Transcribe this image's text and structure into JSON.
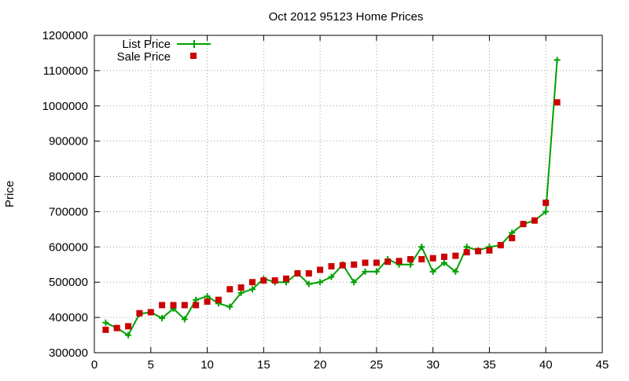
{
  "chart_data": {
    "type": "line",
    "title": "Oct 2012 95123 Home Prices",
    "xlabel": "",
    "ylabel": "Price",
    "xlim": [
      0,
      45
    ],
    "ylim": [
      300000,
      1200000
    ],
    "xticks": [
      0,
      5,
      10,
      15,
      20,
      25,
      30,
      35,
      40,
      45
    ],
    "yticks": [
      300000,
      400000,
      500000,
      600000,
      700000,
      800000,
      900000,
      1000000,
      1100000,
      1200000
    ],
    "grid": true,
    "legend_position": "top-left",
    "series": [
      {
        "name": "List Price",
        "style": "line-plus",
        "color": "#00a000",
        "x": [
          1,
          2,
          3,
          4,
          5,
          6,
          7,
          8,
          9,
          10,
          11,
          12,
          13,
          14,
          15,
          16,
          17,
          18,
          19,
          20,
          21,
          22,
          23,
          24,
          25,
          26,
          27,
          28,
          29,
          30,
          31,
          32,
          33,
          34,
          35,
          36,
          37,
          38,
          39,
          40,
          41
        ],
        "values": [
          385000,
          370000,
          350000,
          410000,
          415000,
          398000,
          425000,
          395000,
          450000,
          460000,
          440000,
          430000,
          470000,
          480000,
          510000,
          500000,
          500000,
          525000,
          495000,
          500000,
          515000,
          550000,
          500000,
          530000,
          530000,
          565000,
          550000,
          550000,
          600000,
          530000,
          555000,
          530000,
          600000,
          590000,
          600000,
          605000,
          640000,
          665000,
          675000,
          700000,
          1130000
        ]
      },
      {
        "name": "Sale Price",
        "style": "square-points",
        "color": "#cc0000",
        "x": [
          1,
          2,
          3,
          4,
          5,
          6,
          7,
          8,
          9,
          10,
          11,
          12,
          13,
          14,
          15,
          16,
          17,
          18,
          19,
          20,
          21,
          22,
          23,
          24,
          25,
          26,
          27,
          28,
          29,
          30,
          31,
          32,
          33,
          34,
          35,
          36,
          37,
          38,
          39,
          40,
          41
        ],
        "values": [
          365000,
          370000,
          375000,
          412000,
          415000,
          435000,
          435000,
          435000,
          435000,
          445000,
          450000,
          480000,
          485000,
          500000,
          505000,
          505000,
          510000,
          525000,
          525000,
          535000,
          545000,
          548000,
          550000,
          555000,
          555000,
          558000,
          560000,
          565000,
          565000,
          568000,
          572000,
          575000,
          585000,
          588000,
          590000,
          605000,
          625000,
          665000,
          675000,
          725000,
          1010000
        ]
      }
    ]
  }
}
